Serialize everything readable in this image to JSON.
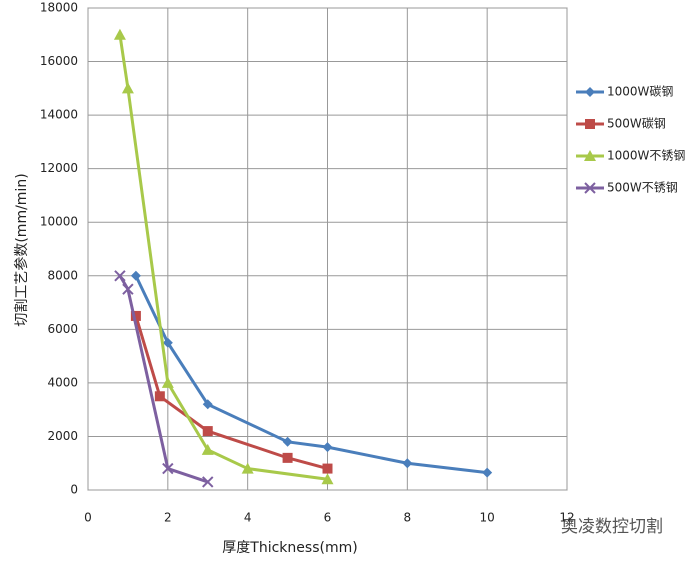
{
  "chart_data": {
    "type": "line",
    "xlabel": "厚度Thickness(mm)",
    "ylabel": "切割工艺参数(mm/min)",
    "annotation": "奥凌数控切割",
    "xlim": [
      0,
      12
    ],
    "xticks": [
      0,
      2,
      4,
      6,
      8,
      10,
      12
    ],
    "ylim": [
      0,
      18000
    ],
    "yticks": [
      0,
      2000,
      4000,
      6000,
      8000,
      10000,
      12000,
      14000,
      16000,
      18000
    ],
    "grid": true,
    "legend": "right",
    "series": [
      {
        "name": "1000W碳钢",
        "color": "#4a7ebb",
        "marker": "diamond",
        "x": [
          1.2,
          2,
          3,
          5,
          6,
          8,
          10
        ],
        "values": [
          8000,
          5500,
          3200,
          1800,
          1600,
          1000,
          650
        ]
      },
      {
        "name": "500W碳钢",
        "color": "#be4b48",
        "marker": "square",
        "x": [
          1.2,
          1.8,
          3,
          5,
          6
        ],
        "values": [
          6500,
          3500,
          2200,
          1200,
          800
        ]
      },
      {
        "name": "1000W不锈钢",
        "color": "#a8c94a",
        "marker": "triangle",
        "x": [
          0.8,
          1,
          2,
          3,
          4,
          6
        ],
        "values": [
          17000,
          15000,
          4000,
          1500,
          800,
          400
        ]
      },
      {
        "name": "500W不锈钢",
        "color": "#7d60a0",
        "marker": "cross",
        "x": [
          0.8,
          1,
          2,
          3
        ],
        "values": [
          8000,
          7500,
          800,
          300
        ]
      }
    ]
  }
}
